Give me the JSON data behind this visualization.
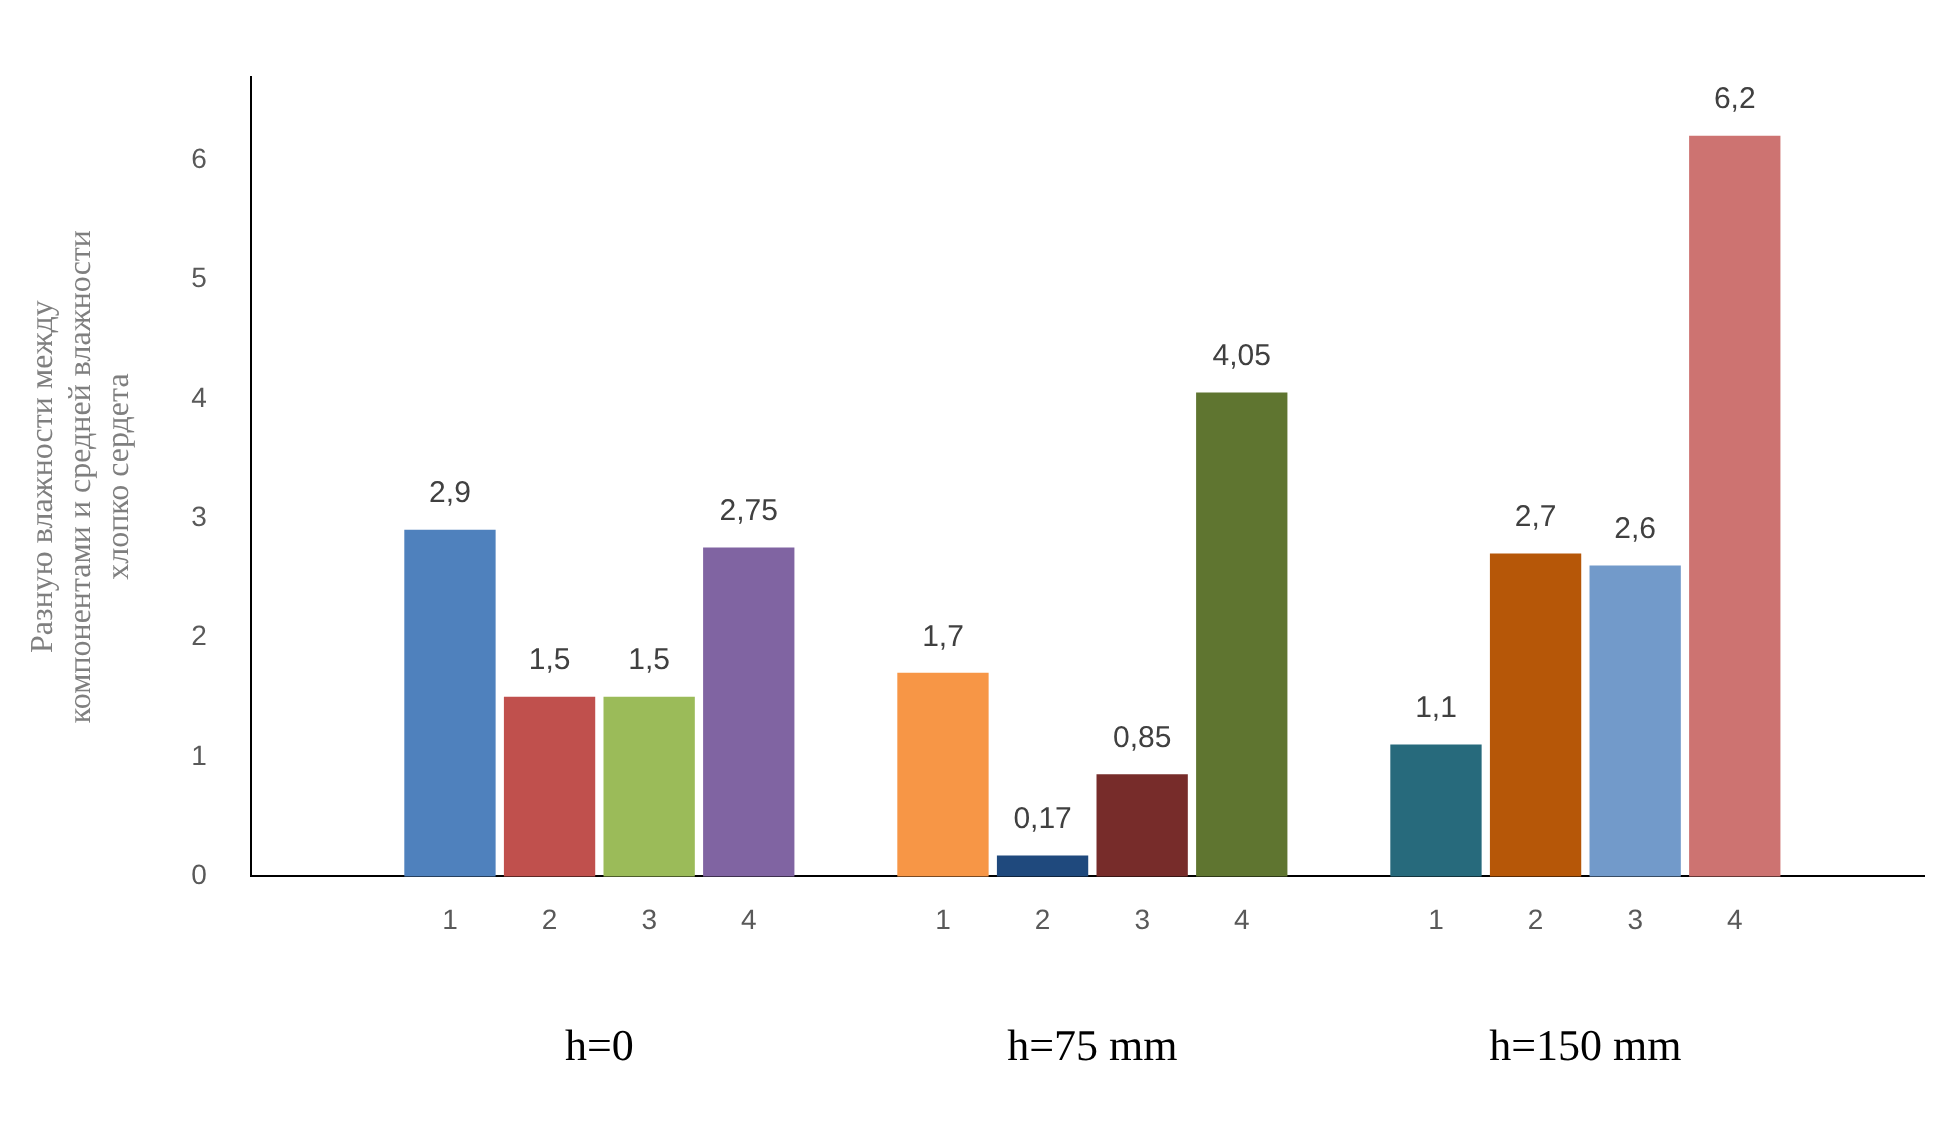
{
  "chart_data": {
    "type": "bar",
    "ylabel": "Разную влажности между\nкомпонентами и средней влажности\nхлопко сердета",
    "categories": [
      "1",
      "2",
      "3",
      "4",
      "1",
      "2",
      "3",
      "4",
      "1",
      "2",
      "3",
      "4"
    ],
    "values": [
      2.9,
      1.5,
      1.5,
      2.75,
      1.7,
      0.17,
      0.85,
      4.05,
      1.1,
      2.7,
      2.6,
      6.2
    ],
    "value_labels": [
      "2,9",
      "1,5",
      "1,5",
      "2,75",
      "1,7",
      "0,17",
      "0,85",
      "4,05",
      "1,1",
      "2,7",
      "2,6",
      "6,2"
    ],
    "colors": [
      "#4f81bd",
      "#c0504d",
      "#9bbb59",
      "#8064a2",
      "#f79646",
      "#1f497d",
      "#772c2a",
      "#5f7530",
      "#276a7c",
      "#b65708",
      "#729aca",
      "#cd7371"
    ],
    "annotations": [
      "h=0",
      "h=75 mm",
      "h=150 mm"
    ],
    "ylim": [
      0,
      6.7
    ],
    "yticks": [
      0,
      1,
      2,
      3,
      4,
      5,
      6
    ],
    "grid": false,
    "legend": false
  }
}
